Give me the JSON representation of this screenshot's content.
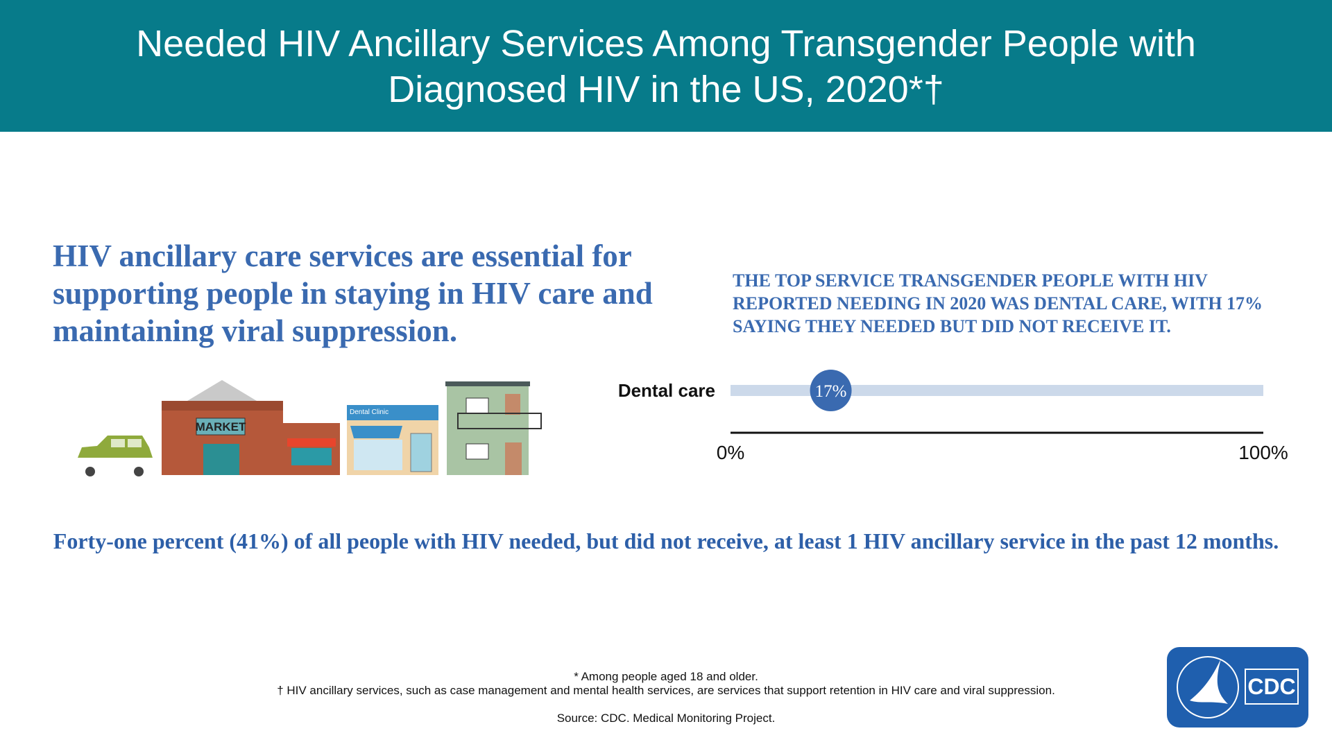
{
  "title": "Needed HIV Ancillary Services Among Transgender People with Diagnosed HIV in the US, 2020*†",
  "intro": "HIV ancillary care services are essential for supporting people in staying in HIV care and maintaining viral suppression.",
  "illustration": {
    "market_sign": "MARKET",
    "clinic_sign": "Dental Clinic"
  },
  "chart_data": {
    "type": "bar",
    "title": "THE TOP SERVICE TRANSGENDER PEOPLE WITH HIV REPORTED NEEDING IN 2020 WAS DENTAL CARE, WITH 17% SAYING THEY NEEDED BUT DID NOT RECEIVE IT.",
    "categories": [
      "Dental care"
    ],
    "values": [
      17
    ],
    "value_labels": [
      "17%"
    ],
    "color": "#3a6ab0",
    "xlim": [
      0,
      100
    ],
    "xticks": [
      {
        "value": 0,
        "label": "0%"
      },
      {
        "value": 100,
        "label": "100%"
      }
    ]
  },
  "statement": "Forty-one percent (41%) of all people with HIV needed, but did not receive, at least 1 HIV ancillary service in the past 12 months.",
  "footnotes": [
    "*  Among people aged 18 and older.",
    "† HIV ancillary services, such as case management and mental health services, are services that support retention in HIV care and viral suppression."
  ],
  "source": "Source: CDC. Medical Monitoring Project.",
  "logo": "CDC"
}
